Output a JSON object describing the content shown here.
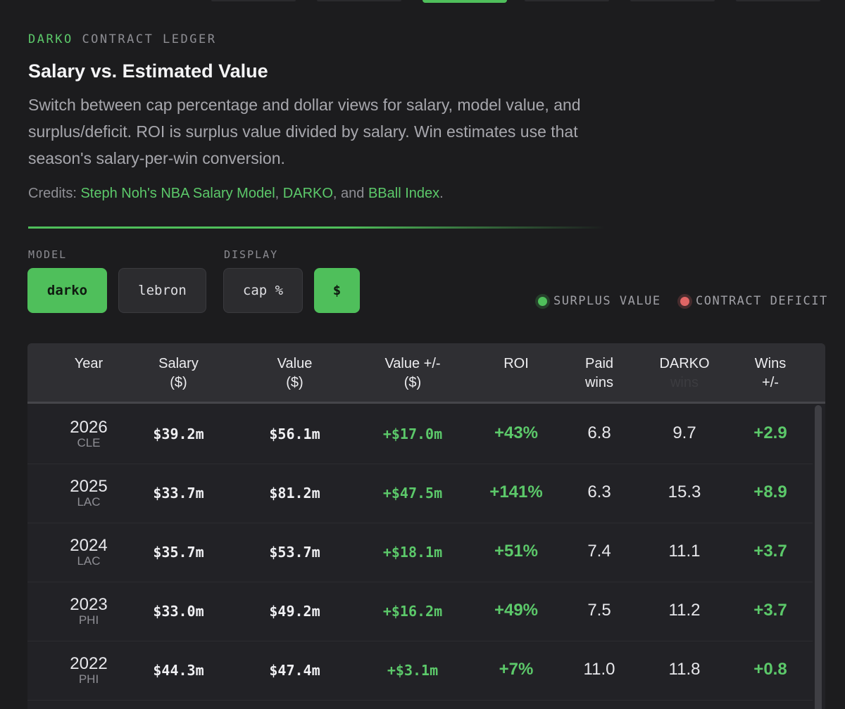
{
  "eyebrow": {
    "brand": "DARKO",
    "rest": "CONTRACT LEDGER"
  },
  "title": "Salary vs. Estimated Value",
  "description": "Switch between cap percentage and dollar views for salary, model value, and surplus/deficit. ROI is surplus value divided by salary. Win estimates use that season's salary-per-win conversion.",
  "credits": {
    "prefix": "Credits: ",
    "link1": "Steph Noh's NBA Salary Model",
    "sep1": ", ",
    "link2": "DARKO",
    "sep2": ", and ",
    "link3": "BBall Index",
    "suffix": "."
  },
  "controls": {
    "model_label": "MODEL",
    "display_label": "DISPLAY",
    "model_options": [
      "darko",
      "lebron"
    ],
    "model_selected": "darko",
    "display_options": [
      "cap %",
      "$"
    ],
    "display_selected": "$"
  },
  "legend": {
    "surplus": "SURPLUS VALUE",
    "deficit": "CONTRACT DEFICIT"
  },
  "colors": {
    "accent": "#4fbf5b",
    "deficit": "#e06565",
    "background": "#1c1c1e"
  },
  "table": {
    "headers": {
      "year": "Year",
      "salary_1": "Salary",
      "salary_2": "($)",
      "value_1": "Value",
      "value_2": "($)",
      "diff_1": "Value +/-",
      "diff_2": "($)",
      "roi": "ROI",
      "paid_1": "Paid",
      "paid_2": "wins",
      "darko_1": "DARKO",
      "darko_2": "wins",
      "wins_1": "Wins",
      "wins_2": "+/-"
    },
    "rows": [
      {
        "year": "2026",
        "team": "CLE",
        "salary": "$39.2m",
        "value": "$56.1m",
        "diff": "+$17.0m",
        "roi": "+43%",
        "paid": "6.8",
        "darko": "9.7",
        "wins": "+2.9"
      },
      {
        "year": "2025",
        "team": "LAC",
        "salary": "$33.7m",
        "value": "$81.2m",
        "diff": "+$47.5m",
        "roi": "+141%",
        "paid": "6.3",
        "darko": "15.3",
        "wins": "+8.9"
      },
      {
        "year": "2024",
        "team": "LAC",
        "salary": "$35.7m",
        "value": "$53.7m",
        "diff": "+$18.1m",
        "roi": "+51%",
        "paid": "7.4",
        "darko": "11.1",
        "wins": "+3.7"
      },
      {
        "year": "2023",
        "team": "PHI",
        "salary": "$33.0m",
        "value": "$49.2m",
        "diff": "+$16.2m",
        "roi": "+49%",
        "paid": "7.5",
        "darko": "11.2",
        "wins": "+3.7"
      },
      {
        "year": "2022",
        "team": "PHI",
        "salary": "$44.3m",
        "value": "$47.4m",
        "diff": "+$3.1m",
        "roi": "+7%",
        "paid": "11.0",
        "darko": "11.8",
        "wins": "+0.8"
      }
    ]
  }
}
